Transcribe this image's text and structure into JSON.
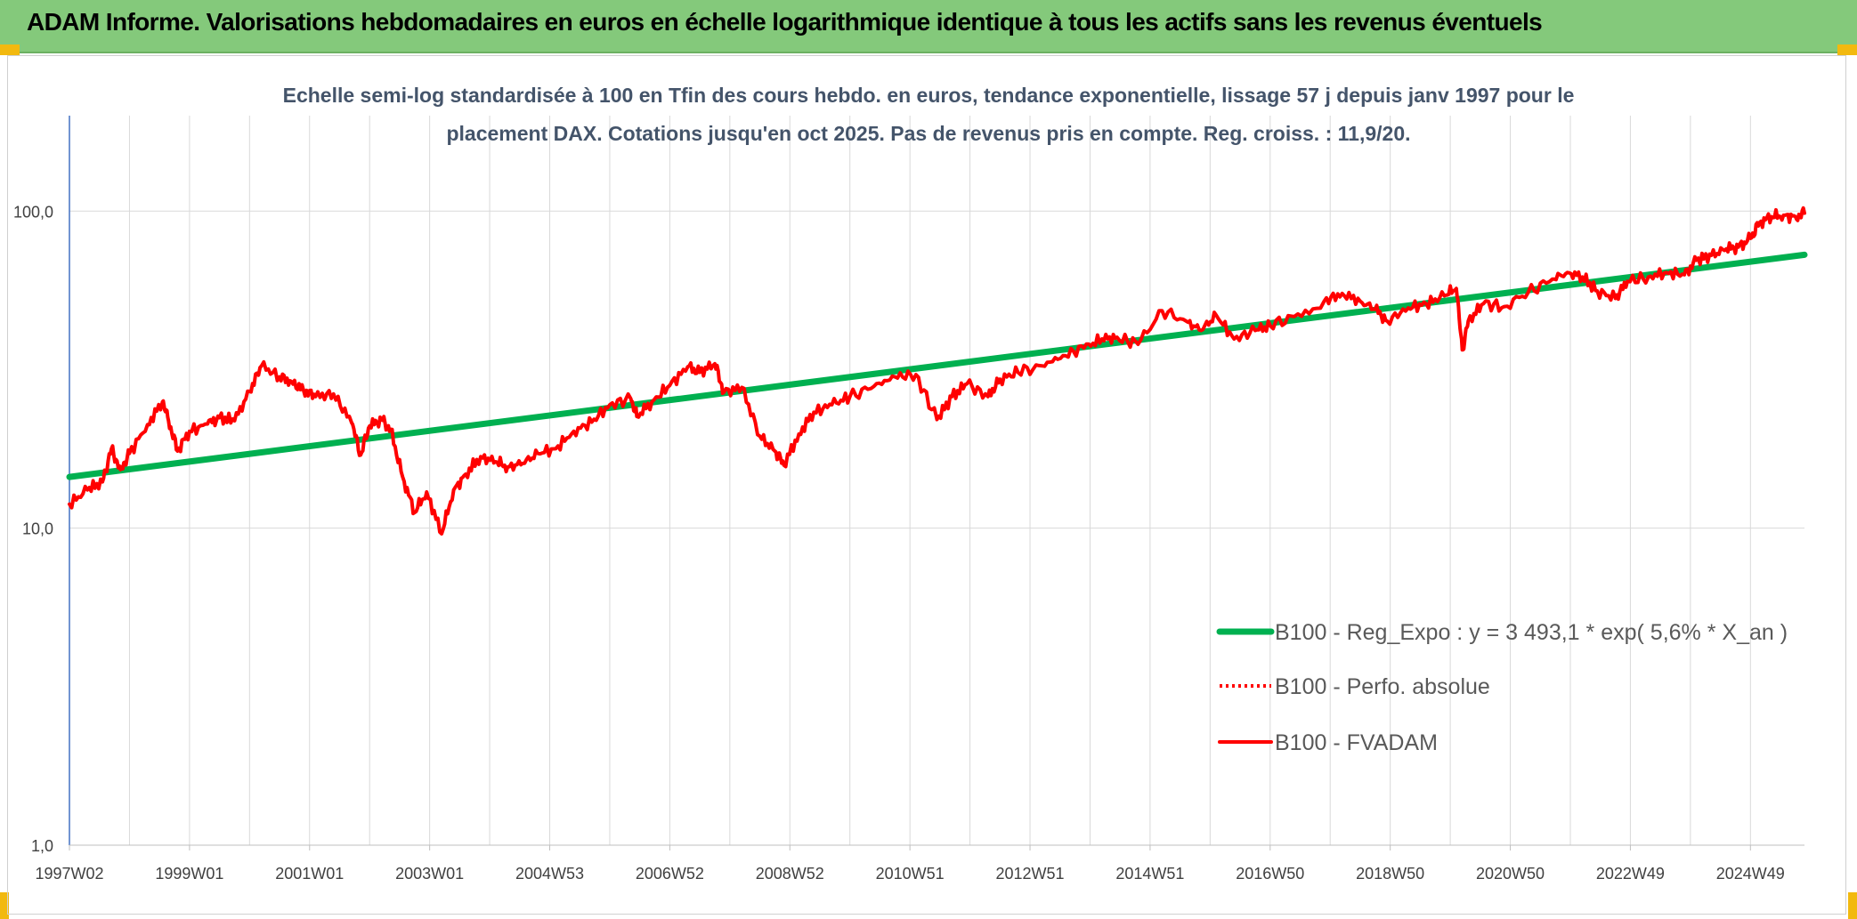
{
  "header": {
    "title": "ADAM Informe. Valorisations hebdomadaires en euros en échelle logarithmique identique à tous les actifs sans les revenus éventuels"
  },
  "chart_data": {
    "type": "line",
    "title": "",
    "subtitle": [
      "Echelle semi-log standardisée à 100 en Tfin des cours hebdo. en euros, tendance exponentielle, lissage 57 j depuis janv 1997 pour le",
      "placement DAX. Cotations jusqu'en oct 2025. Pas de revenus pris en compte. Reg. croiss. : 11,9/20."
    ],
    "xlabel": "",
    "ylabel": "",
    "x_scale": "weekly",
    "y_scale": "log10",
    "ylim": [
      1,
      200
    ],
    "xlim": [
      1997.0,
      2025.9
    ],
    "x_ticks": [
      {
        "x": 1997.0,
        "label": "1997W02"
      },
      {
        "x": 1999.0,
        "label": "1999W01"
      },
      {
        "x": 2001.0,
        "label": "2001W01"
      },
      {
        "x": 2003.0,
        "label": "2003W01"
      },
      {
        "x": 2005.0,
        "label": "2004W53"
      },
      {
        "x": 2007.0,
        "label": "2006W52"
      },
      {
        "x": 2009.0,
        "label": "2008W52"
      },
      {
        "x": 2011.0,
        "label": "2010W51"
      },
      {
        "x": 2013.0,
        "label": "2012W51"
      },
      {
        "x": 2015.0,
        "label": "2014W51"
      },
      {
        "x": 2017.0,
        "label": "2016W50"
      },
      {
        "x": 2019.0,
        "label": "2018W50"
      },
      {
        "x": 2021.0,
        "label": "2020W50"
      },
      {
        "x": 2023.0,
        "label": "2022W49"
      },
      {
        "x": 2025.0,
        "label": "2024W49"
      }
    ],
    "y_ticks": [
      {
        "y": 1,
        "label": "1,0"
      },
      {
        "y": 10,
        "label": "10,0"
      },
      {
        "y": 100,
        "label": "100,0"
      }
    ],
    "grid": true,
    "legend_position": "bottom-right",
    "series": [
      {
        "name": "B100 - Reg_Expo : y = 3 493,1 * exp( 5,6% * X_an )",
        "style": "solid-thick",
        "color": "#00b050",
        "x": [
          1997.0,
          2025.9
        ],
        "y": [
          14.5,
          72.8
        ]
      },
      {
        "name": "B100 - Perfo. absolue",
        "style": "dotted",
        "color": "#ff0000",
        "x": [],
        "y": []
      },
      {
        "name": "B100 - FVADAM",
        "style": "solid",
        "color": "#ff0000",
        "x": [
          1997.0,
          1997.3,
          1997.55,
          1997.7,
          1997.85,
          1998.0,
          1998.3,
          1998.55,
          1998.65,
          1998.8,
          1999.0,
          1999.3,
          1999.5,
          1999.75,
          2000.0,
          2000.2,
          2000.5,
          2000.7,
          2000.9,
          2001.1,
          2001.4,
          2001.7,
          2001.85,
          2002.0,
          2002.2,
          2002.35,
          2002.55,
          2002.75,
          2002.95,
          2003.2,
          2003.4,
          2003.6,
          2003.85,
          2004.1,
          2004.3,
          2004.55,
          2004.8,
          2005.1,
          2005.4,
          2005.7,
          2006.0,
          2006.35,
          2006.45,
          2006.7,
          2007.0,
          2007.3,
          2007.5,
          2007.75,
          2007.9,
          2008.2,
          2008.5,
          2008.75,
          2008.9,
          2009.15,
          2009.4,
          2009.7,
          2010.0,
          2010.4,
          2010.75,
          2011.1,
          2011.45,
          2011.7,
          2011.95,
          2012.3,
          2012.5,
          2012.8,
          2013.2,
          2013.55,
          2013.9,
          2014.2,
          2014.45,
          2014.8,
          2015.2,
          2015.6,
          2015.85,
          2016.1,
          2016.4,
          2016.75,
          2017.0,
          2017.4,
          2017.9,
          2018.2,
          2018.5,
          2018.75,
          2018.95,
          2019.3,
          2019.6,
          2019.9,
          2020.1,
          2020.2,
          2020.3,
          2020.55,
          2020.9,
          2021.3,
          2021.7,
          2021.95,
          2022.2,
          2022.45,
          2022.75,
          2022.95,
          2023.3,
          2023.6,
          2023.9,
          2024.1,
          2024.35,
          2024.6,
          2024.8,
          2025.0,
          2025.15,
          2025.35,
          2025.55,
          2025.75,
          2025.9
        ],
        "y": [
          11.9,
          13.2,
          14.0,
          17.8,
          15.3,
          17.2,
          21.2,
          25.0,
          21.8,
          17.5,
          20.2,
          21.3,
          22.3,
          21.8,
          27.0,
          32.5,
          30.0,
          29.0,
          27.2,
          26.0,
          26.5,
          21.5,
          17.0,
          21.0,
          22.0,
          20.5,
          14.5,
          11.2,
          13.0,
          9.6,
          13.2,
          14.8,
          16.8,
          16.2,
          15.6,
          16.0,
          17.2,
          17.8,
          20.2,
          21.6,
          24.5,
          25.6,
          22.5,
          25.0,
          28.2,
          32.3,
          31.0,
          33.0,
          26.8,
          27.8,
          19.5,
          17.5,
          15.8,
          19.8,
          23.2,
          24.5,
          26.0,
          28.0,
          30.0,
          30.5,
          22.0,
          26.0,
          28.5,
          26.0,
          29.5,
          31.0,
          32.5,
          35.0,
          37.0,
          39.5,
          40.0,
          38.0,
          48.5,
          45.0,
          42.0,
          47.0,
          39.5,
          42.0,
          43.5,
          46.5,
          52.0,
          55.0,
          52.0,
          49.0,
          45.0,
          49.5,
          51.0,
          54.0,
          57.0,
          36.5,
          45.0,
          51.0,
          50.0,
          55.5,
          61.0,
          64.0,
          62.0,
          56.0,
          53.0,
          60.0,
          62.0,
          64.0,
          63.0,
          70.0,
          72.5,
          76.0,
          77.0,
          82.0,
          92.0,
          96.0,
          97.0,
          96.0,
          98.5
        ]
      }
    ]
  }
}
